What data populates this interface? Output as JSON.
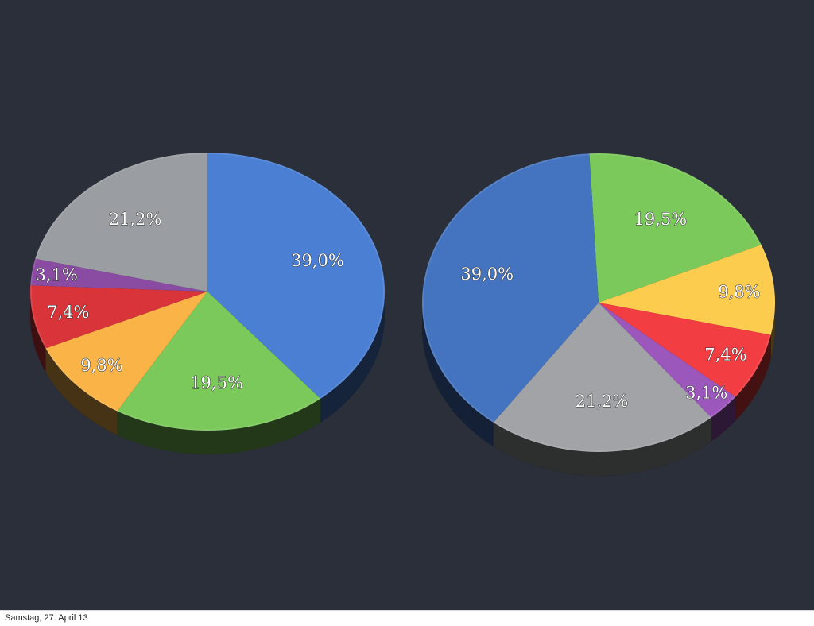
{
  "chart_data": [
    {
      "type": "pie",
      "title": "",
      "slices": [
        {
          "label": "39,0%",
          "value": 39.0,
          "color": "#4a7fd3"
        },
        {
          "label": "19,5%",
          "value": 19.5,
          "color": "#7ac95a"
        },
        {
          "label": "9,8%",
          "value": 9.8,
          "color": "#f9b347"
        },
        {
          "label": "7,4%",
          "value": 7.4,
          "color": "#d8343a"
        },
        {
          "label": "3,1%",
          "value": 3.1,
          "color": "#8a4ca2"
        },
        {
          "label": "21,2%",
          "value": 21.2,
          "color": "#9a9da1"
        }
      ]
    },
    {
      "type": "pie",
      "title": "",
      "slices": [
        {
          "label": "19,5%",
          "value": 19.5,
          "color": "#7ac95a"
        },
        {
          "label": "9,8%",
          "value": 9.8,
          "color": "#fccc4f"
        },
        {
          "label": "7,4%",
          "value": 7.4,
          "color": "#f23d43"
        },
        {
          "label": "3,1%",
          "value": 3.1,
          "color": "#9c57bc"
        },
        {
          "label": "21,2%",
          "value": 21.2,
          "color": "#a1a3a6"
        },
        {
          "label": "39,0%",
          "value": 39.0,
          "color": "#4474bf"
        }
      ]
    }
  ],
  "footer": {
    "date": "Samstag, 27. April 13"
  },
  "colors": {
    "background": "#2a2f39",
    "footer_background": "#ffffff"
  }
}
